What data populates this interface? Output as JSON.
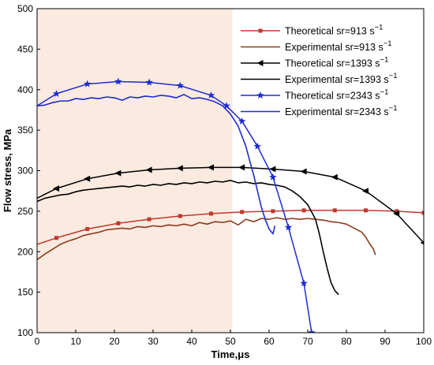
{
  "chart_data": {
    "type": "line",
    "xlabel": "Time,μs",
    "ylabel": "Flow stress, MPa",
    "xlim": [
      0,
      100
    ],
    "ylim": [
      100,
      500
    ],
    "xticks": [
      "0",
      "10",
      "20",
      "30",
      "40",
      "50",
      "60",
      "70",
      "80",
      "90",
      "100"
    ],
    "yticks": [
      "100",
      "150",
      "200",
      "250",
      "300",
      "350",
      "400",
      "450",
      "500"
    ],
    "grid": false,
    "legend_position": "top-right",
    "highlight_region": {
      "x_start": 0,
      "x_end": 50.5,
      "color": "#fbeadf"
    },
    "series": [
      {
        "name": "Theoretical sr=913 s",
        "name_sup": "−1",
        "color": "#c0392b",
        "marker": "square",
        "x": [
          0,
          5,
          13,
          21,
          29,
          37,
          45,
          53,
          61,
          69,
          77,
          85,
          93,
          100
        ],
        "y": [
          209,
          217,
          228,
          235,
          240,
          244,
          247,
          249,
          250,
          251,
          251,
          251,
          250,
          248
        ]
      },
      {
        "name": "Experimental sr=913 s",
        "name_sup": "−1",
        "color": "#8b3a1a",
        "marker": "none",
        "x": [
          0,
          2,
          4,
          6,
          8,
          10,
          12,
          14,
          16,
          18,
          20,
          22,
          24,
          26,
          28,
          30,
          32,
          34,
          36,
          38,
          40,
          42,
          44,
          46,
          48,
          50,
          52,
          54,
          56,
          58,
          60,
          62,
          64,
          66,
          68,
          70,
          72,
          74,
          76,
          78,
          80,
          82,
          84,
          85,
          86,
          87,
          87.5
        ],
        "y": [
          190,
          197,
          203,
          209,
          213,
          216,
          220,
          222,
          224,
          227,
          228,
          229,
          228,
          231,
          230,
          232,
          231,
          233,
          232,
          234,
          232,
          236,
          234,
          237,
          236,
          238,
          233,
          240,
          237,
          241,
          240,
          242,
          240,
          241,
          240,
          241,
          240,
          239,
          237,
          236,
          234,
          229,
          224,
          218,
          210,
          203,
          196
        ]
      },
      {
        "name": "Theoretical sr=1393 s",
        "name_sup": "−1",
        "color": "#000000",
        "marker": "triangle-left",
        "x": [
          0,
          5,
          13,
          21,
          29,
          37,
          45,
          53,
          61,
          69,
          77,
          85,
          93,
          100
        ],
        "y": [
          266,
          278,
          290,
          297,
          301,
          303,
          304,
          304,
          302,
          299,
          292,
          275,
          247,
          211
        ]
      },
      {
        "name": "Experimental sr=1393 s",
        "name_sup": "−1",
        "color": "#000000",
        "marker": "none",
        "x": [
          0,
          2,
          4,
          6,
          8,
          10,
          12,
          14,
          16,
          18,
          20,
          22,
          24,
          26,
          28,
          30,
          32,
          34,
          36,
          38,
          40,
          42,
          44,
          46,
          48,
          50,
          52,
          54,
          56,
          58,
          60,
          62,
          64,
          66,
          68,
          70,
          72,
          73,
          74,
          75,
          76,
          77,
          78
        ],
        "y": [
          262,
          266,
          268,
          270,
          271,
          274,
          276,
          277,
          278,
          279,
          280,
          281,
          280,
          282,
          281,
          283,
          282,
          284,
          283,
          285,
          284,
          286,
          285,
          287,
          286,
          288,
          285,
          286,
          284,
          285,
          283,
          282,
          280,
          275,
          268,
          258,
          240,
          222,
          200,
          180,
          162,
          152,
          147
        ]
      },
      {
        "name": "Theoretical sr=2343 s",
        "name_sup": "−1",
        "color": "#1f2bd1",
        "marker": "star",
        "x": [
          0,
          5,
          13,
          21,
          29,
          37,
          45,
          49,
          53,
          57,
          61,
          65,
          69,
          71
        ],
        "y": [
          380,
          395,
          407,
          410,
          409,
          405,
          393,
          380,
          361,
          330,
          292,
          230,
          161,
          100
        ]
      },
      {
        "name": "Experimental sr=2343 s",
        "name_sup": "−1",
        "color": "#1f2bd1",
        "marker": "none",
        "x": [
          0,
          2,
          4,
          6,
          8,
          10,
          12,
          14,
          16,
          18,
          20,
          22,
          24,
          26,
          28,
          30,
          32,
          34,
          36,
          38,
          40,
          42,
          44,
          46,
          48,
          50,
          52,
          54,
          55,
          56,
          57,
          58,
          59,
          60,
          61,
          61.5
        ],
        "y": [
          380,
          381,
          384,
          386,
          386,
          389,
          388,
          390,
          389,
          391,
          390,
          387,
          391,
          390,
          392,
          391,
          393,
          392,
          390,
          394,
          389,
          390,
          388,
          385,
          380,
          370,
          355,
          330,
          312,
          295,
          275,
          255,
          240,
          228,
          222,
          232
        ]
      }
    ]
  }
}
